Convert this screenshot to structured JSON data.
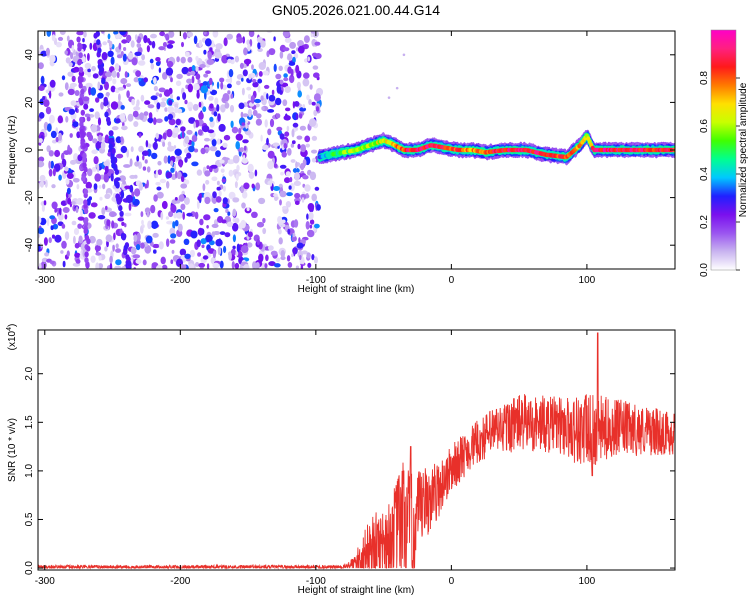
{
  "figure_title": "GN05.2026.021.00.44.G14",
  "chart_data": [
    {
      "type": "heatmap",
      "title": "GN05.2026.021.00.44.G14",
      "xlabel": "Height of straight line (km)",
      "ylabel": "Frequency (Hz)",
      "xlim": [
        -305,
        165
      ],
      "ylim": [
        -50,
        50
      ],
      "xticks": [
        -300,
        -200,
        -100,
        0,
        100
      ],
      "yticks": [
        -40,
        -20,
        0,
        20,
        40
      ],
      "noise_region_x": [
        -305,
        -97
      ],
      "noise_stripes": [
        {
          "name": "stripe-1",
          "x_at_top": -262,
          "x_at_bottom": -238,
          "intensity": 0.25
        },
        {
          "name": "stripe-2",
          "x_at_top": -275,
          "x_at_bottom": -268,
          "intensity": 0.15
        }
      ],
      "signal_trace": [
        {
          "x": -97,
          "freq": -3,
          "amp": 0.35
        },
        {
          "x": -90,
          "freq": -2,
          "amp": 0.45
        },
        {
          "x": -80,
          "freq": -1,
          "amp": 0.55
        },
        {
          "x": -70,
          "freq": 0,
          "amp": 0.6
        },
        {
          "x": -60,
          "freq": 2,
          "amp": 0.6
        },
        {
          "x": -50,
          "freq": 4,
          "amp": 0.65
        },
        {
          "x": -45,
          "freq": 3,
          "amp": 0.7
        },
        {
          "x": -35,
          "freq": 0,
          "amp": 0.85
        },
        {
          "x": -25,
          "freq": 0,
          "amp": 0.9
        },
        {
          "x": -15,
          "freq": 2,
          "amp": 0.9
        },
        {
          "x": -5,
          "freq": 1,
          "amp": 0.88
        },
        {
          "x": 5,
          "freq": 0,
          "amp": 0.8
        },
        {
          "x": 15,
          "freq": 0,
          "amp": 0.75
        },
        {
          "x": 25,
          "freq": -1,
          "amp": 0.82
        },
        {
          "x": 40,
          "freq": 0,
          "amp": 0.9
        },
        {
          "x": 55,
          "freq": 0,
          "amp": 0.9
        },
        {
          "x": 70,
          "freq": -2,
          "amp": 0.85
        },
        {
          "x": 85,
          "freq": -3,
          "amp": 0.82
        },
        {
          "x": 95,
          "freq": 2,
          "amp": 0.75
        },
        {
          "x": 100,
          "freq": 6,
          "amp": 0.55
        },
        {
          "x": 105,
          "freq": 0,
          "amp": 0.9
        },
        {
          "x": 120,
          "freq": 0,
          "amp": 0.9
        },
        {
          "x": 140,
          "freq": 0,
          "amp": 0.88
        },
        {
          "x": 165,
          "freq": 0,
          "amp": 0.85
        }
      ]
    },
    {
      "type": "line",
      "xlabel": "Height of straight line (km)",
      "ylabel": "SNR (10 * v/v)",
      "yscale_label": "(x10",
      "yscale_exponent": "4",
      "xlim": [
        -305,
        165
      ],
      "ylim": [
        -0.02,
        2.45
      ],
      "xticks": [
        -300,
        -200,
        -100,
        0,
        100
      ],
      "yticks": [
        0.0,
        0.5,
        1.0,
        1.5,
        2.0
      ],
      "ytick_labels": [
        "0.0",
        "0.5",
        "1.0",
        "1.5",
        "2.0"
      ],
      "series": [
        {
          "name": "SNR",
          "color": "#e8302a",
          "envelope": [
            {
              "x": -305,
              "base": 0.01,
              "spread": 0.02
            },
            {
              "x": -80,
              "base": 0.01,
              "spread": 0.02
            },
            {
              "x": -72,
              "base": 0.04,
              "spread": 0.08
            },
            {
              "x": -60,
              "base": 0.22,
              "spread": 0.3
            },
            {
              "x": -45,
              "base": 0.3,
              "spread": 0.4
            },
            {
              "x": -35,
              "base": 0.5,
              "spread": 0.7
            },
            {
              "x": -28,
              "base": 0.4,
              "spread": 0.55
            },
            {
              "x": -20,
              "base": 0.65,
              "spread": 0.4
            },
            {
              "x": -10,
              "base": 0.8,
              "spread": 0.3
            },
            {
              "x": 0,
              "base": 1.02,
              "spread": 0.25
            },
            {
              "x": 15,
              "base": 1.25,
              "spread": 0.22
            },
            {
              "x": 30,
              "base": 1.4,
              "spread": 0.25
            },
            {
              "x": 50,
              "base": 1.5,
              "spread": 0.3
            },
            {
              "x": 80,
              "base": 1.47,
              "spread": 0.3
            },
            {
              "x": 100,
              "base": 1.4,
              "spread": 0.4
            },
            {
              "x": 120,
              "base": 1.45,
              "spread": 0.3
            },
            {
              "x": 165,
              "base": 1.38,
              "spread": 0.22
            }
          ],
          "peaks": [
            {
              "x": -30,
              "value": 1.25
            },
            {
              "x": 108,
              "value": 2.42
            },
            {
              "x": 104,
              "value": 0.95
            }
          ]
        }
      ]
    }
  ],
  "colorbar": {
    "label": "Normalized spectral amplitude",
    "range": [
      0,
      1
    ],
    "ticks": [
      0.0,
      0.2,
      0.4,
      0.6,
      0.8
    ],
    "tick_labels": [
      "0.0",
      "0.2",
      "0.4",
      "0.6",
      "0.8"
    ],
    "stops": [
      "#ffffff",
      "#c9b4f0",
      "#9a55f0",
      "#7a10ee",
      "#2020ff",
      "#00c8ff",
      "#00ff90",
      "#40ff00",
      "#c8ff00",
      "#ffe000",
      "#ff7a00",
      "#ff1a1a",
      "#ff2080",
      "#ff00c8"
    ]
  }
}
